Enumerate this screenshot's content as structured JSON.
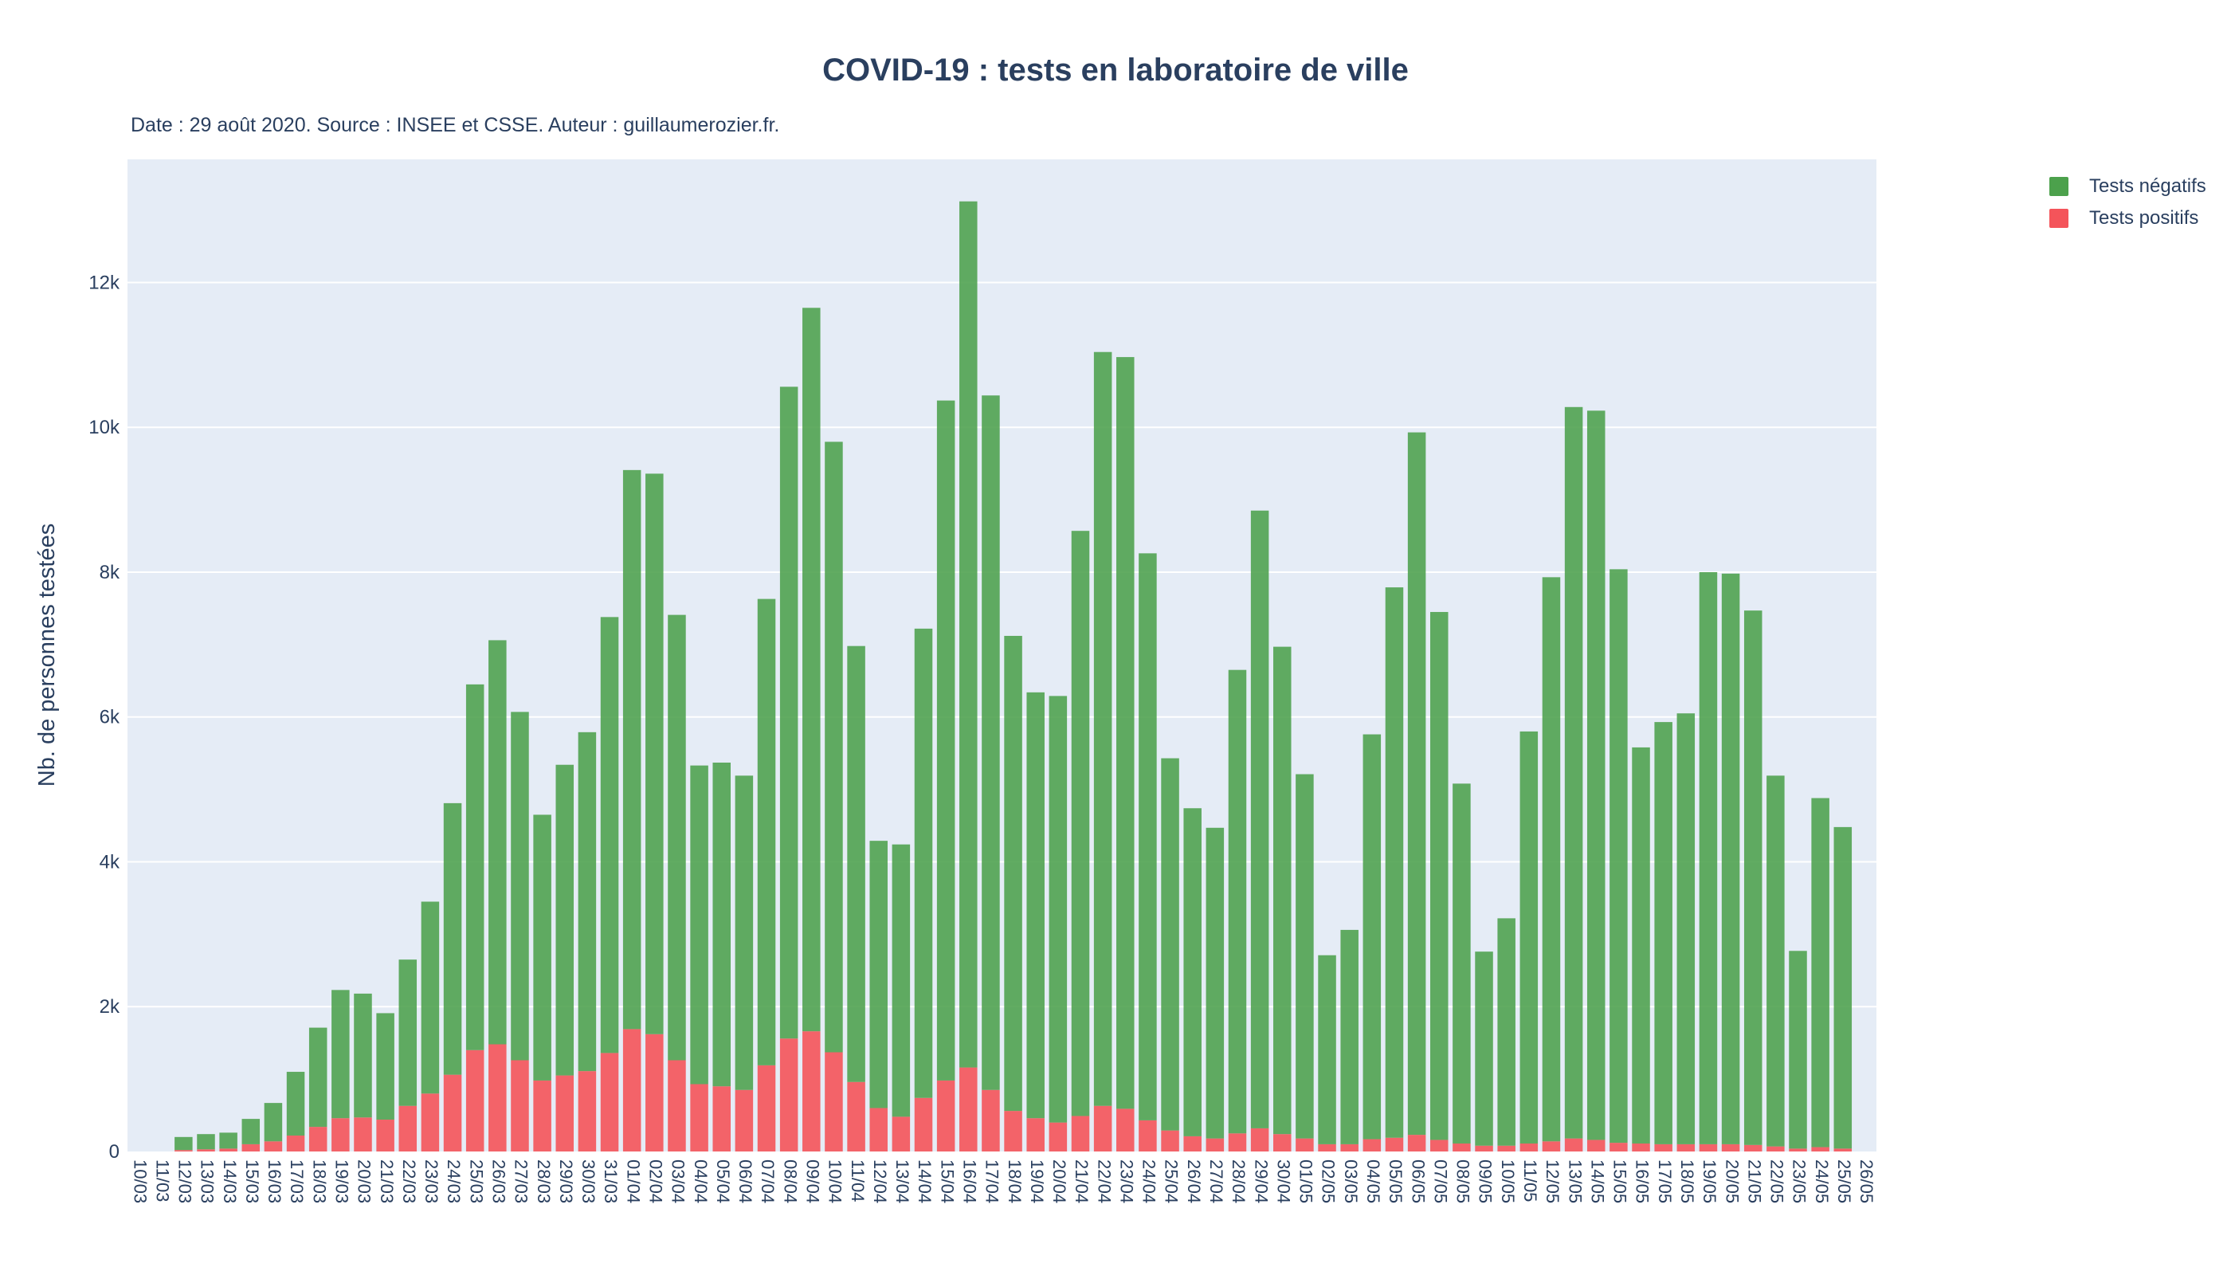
{
  "title": "COVID-19 : tests en laboratoire de ville",
  "subtitle": "Date : 29 août 2020. Source : INSEE et CSSE. Auteur : guillaumerozier.fr.",
  "colors": {
    "negatifs": "#4ca14c",
    "positifs": "#f4545a",
    "plot_bg": "#e5ecf6",
    "grid": "#ffffff",
    "text": "#2a3f5f"
  },
  "chart_data": {
    "type": "bar",
    "barmode": "stack",
    "ylabel": "Nb. de personnes testées",
    "xlabel": "",
    "ylim": [
      0,
      13700
    ],
    "yticks": [
      0,
      2000,
      4000,
      6000,
      8000,
      10000,
      12000
    ],
    "ytick_labels": [
      "0",
      "2k",
      "4k",
      "6k",
      "8k",
      "10k",
      "12k"
    ],
    "grid": true,
    "legend_position": "top-right",
    "categories": [
      "10/03",
      "11/03",
      "12/03",
      "13/03",
      "14/03",
      "15/03",
      "16/03",
      "17/03",
      "18/03",
      "19/03",
      "20/03",
      "21/03",
      "22/03",
      "23/03",
      "24/03",
      "25/03",
      "26/03",
      "27/03",
      "28/03",
      "29/03",
      "30/03",
      "31/03",
      "01/04",
      "02/04",
      "03/04",
      "04/04",
      "05/04",
      "06/04",
      "07/04",
      "08/04",
      "09/04",
      "10/04",
      "11/04",
      "12/04",
      "13/04",
      "14/04",
      "15/04",
      "16/04",
      "17/04",
      "18/04",
      "19/04",
      "20/04",
      "21/04",
      "22/04",
      "23/04",
      "24/04",
      "25/04",
      "26/04",
      "27/04",
      "28/04",
      "29/04",
      "30/04",
      "01/05",
      "02/05",
      "03/05",
      "04/05",
      "05/05",
      "06/05",
      "07/05",
      "08/05",
      "09/05",
      "10/05",
      "11/05",
      "12/05",
      "13/05",
      "14/05",
      "15/05",
      "16/05",
      "17/05",
      "18/05",
      "19/05",
      "20/05",
      "21/05",
      "22/05",
      "23/05",
      "24/05",
      "25/05",
      "26/05"
    ],
    "series": [
      {
        "name": "Tests positifs",
        "color": "#f4545a",
        "values": [
          0,
          0,
          20,
          30,
          40,
          100,
          140,
          220,
          340,
          460,
          470,
          440,
          630,
          800,
          1060,
          1400,
          1480,
          1260,
          980,
          1050,
          1110,
          1360,
          1690,
          1620,
          1260,
          930,
          900,
          850,
          1190,
          1560,
          1660,
          1370,
          960,
          600,
          480,
          740,
          980,
          1160,
          850,
          560,
          460,
          400,
          490,
          630,
          590,
          430,
          290,
          210,
          180,
          250,
          320,
          240,
          180,
          100,
          100,
          170,
          190,
          230,
          160,
          110,
          80,
          80,
          110,
          140,
          180,
          160,
          120,
          110,
          100,
          100,
          100,
          100,
          90,
          70,
          40,
          60,
          40,
          0
        ]
      },
      {
        "name": "Tests négatifs",
        "color": "#4ca14c",
        "values": [
          0,
          0,
          180,
          210,
          220,
          350,
          530,
          880,
          1370,
          1770,
          1710,
          1470,
          2020,
          2650,
          3750,
          5050,
          5580,
          4810,
          3670,
          4290,
          4680,
          6020,
          7720,
          7740,
          6150,
          4400,
          4470,
          4340,
          6440,
          9000,
          9990,
          8430,
          6020,
          3690,
          3760,
          6480,
          9390,
          11960,
          9590,
          6560,
          5880,
          5890,
          8080,
          10410,
          10380,
          7830,
          5140,
          4530,
          4290,
          6400,
          8530,
          6730,
          5030,
          2610,
          2960,
          5590,
          7600,
          9700,
          7290,
          4970,
          2680,
          3140,
          5690,
          7790,
          10100,
          10070,
          7920,
          5470,
          5830,
          5950,
          7900,
          7880,
          7380,
          5120,
          2730,
          4820,
          4440,
          0
        ]
      }
    ]
  }
}
